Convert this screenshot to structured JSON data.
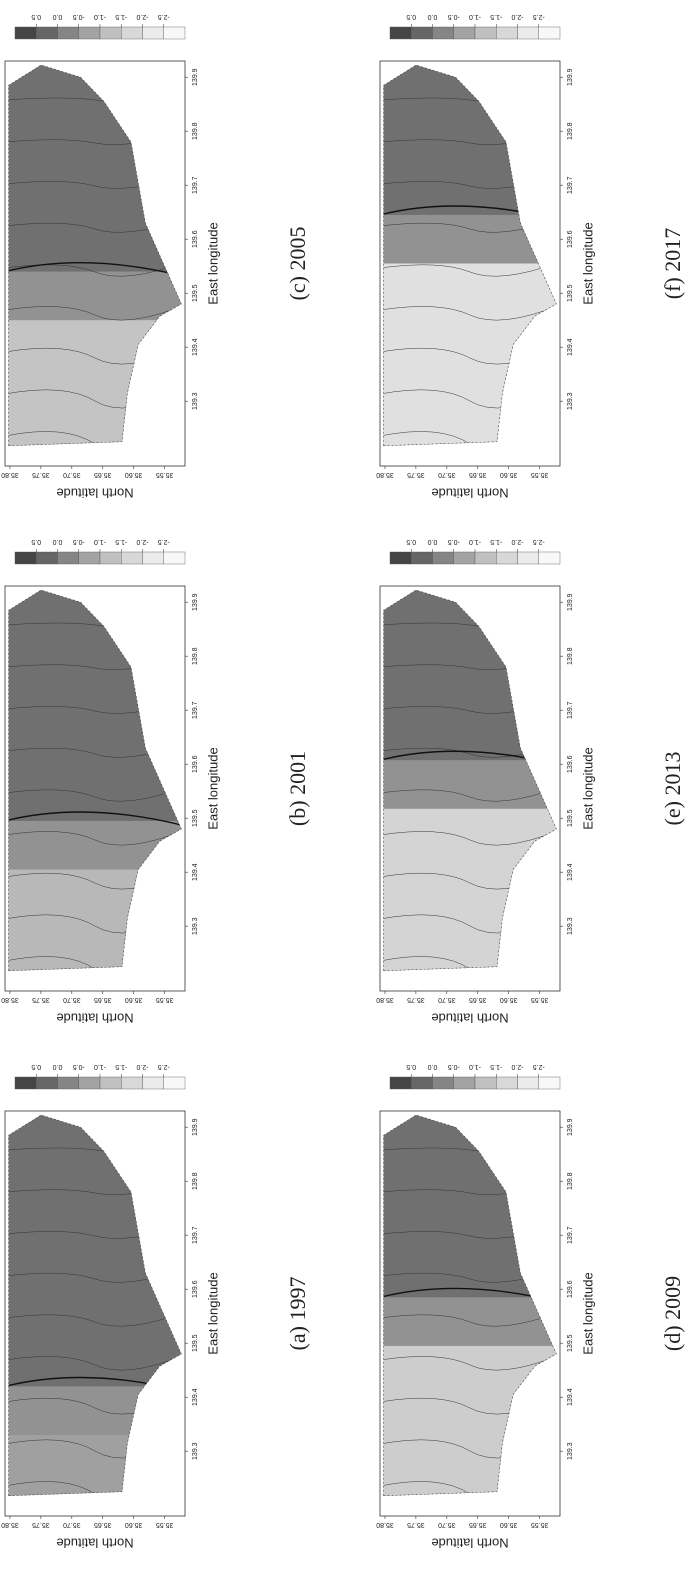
{
  "figure": {
    "axes": {
      "x_label": "East longitude",
      "y_label": "North latitude",
      "xlim": [
        139.18,
        139.93
      ],
      "ylim": [
        35.517,
        35.808
      ],
      "xticks": [
        139.3,
        139.4,
        139.5,
        139.6,
        139.7,
        139.8,
        139.9
      ],
      "yticks": [
        {
          "value": 35.8,
          "label": "35.80"
        },
        {
          "value": 35.75,
          "label": "35.75"
        },
        {
          "value": 35.7,
          "label": "35.70"
        },
        {
          "value": 35.65,
          "label": "35.65"
        },
        {
          "value": 35.6,
          "label": "35.60"
        },
        {
          "value": 35.55,
          "label": "35.55"
        }
      ]
    },
    "colorbar": {
      "labels": [
        "0.5",
        "0.0",
        "-0.5",
        "-1.0",
        "-1.5",
        "-2.0",
        "-2.5"
      ],
      "colors": [
        "#454545",
        "#666666",
        "#858585",
        "#a3a3a3",
        "#c0c0c0",
        "#d8d8d8",
        "#ebebeb",
        "#f8f8f8"
      ]
    },
    "panels": [
      {
        "caption": "(a) 1997"
      },
      {
        "caption": "(b) 2001"
      },
      {
        "caption": "(c) 2005"
      },
      {
        "caption": "(d) 2009"
      },
      {
        "caption": "(e) 2013"
      },
      {
        "caption": "(f) 2017"
      }
    ]
  }
}
